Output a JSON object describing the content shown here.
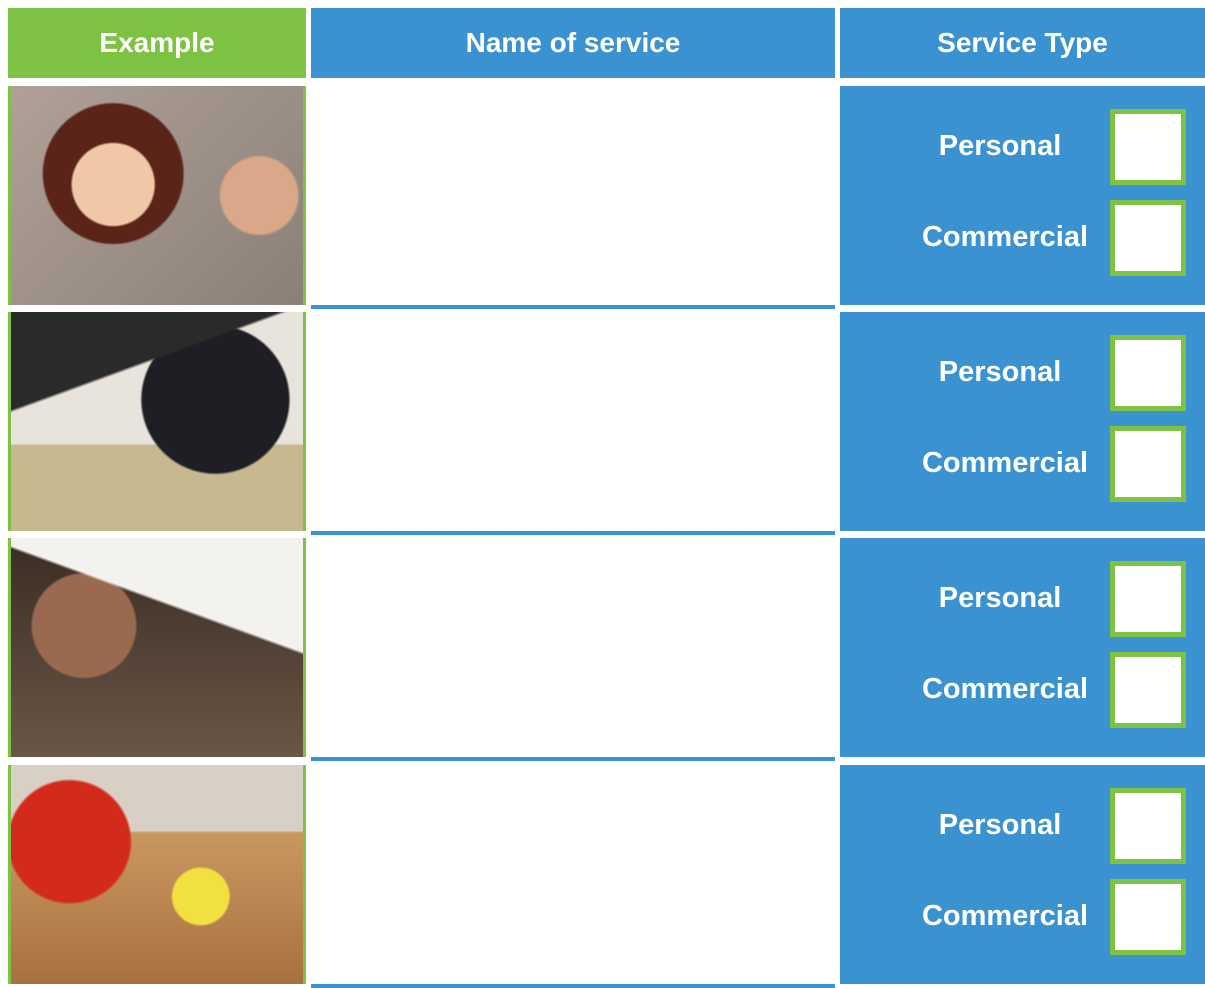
{
  "header": {
    "columns": [
      "Example",
      "Name of service",
      "Service Type"
    ]
  },
  "rows": [
    {
      "options": [
        "Personal",
        "Commercial"
      ]
    },
    {
      "options": [
        "Personal",
        "Commercial"
      ]
    },
    {
      "options": [
        "Personal",
        "Commercial"
      ]
    },
    {
      "options": [
        "Personal",
        "Commercial"
      ]
    }
  ]
}
